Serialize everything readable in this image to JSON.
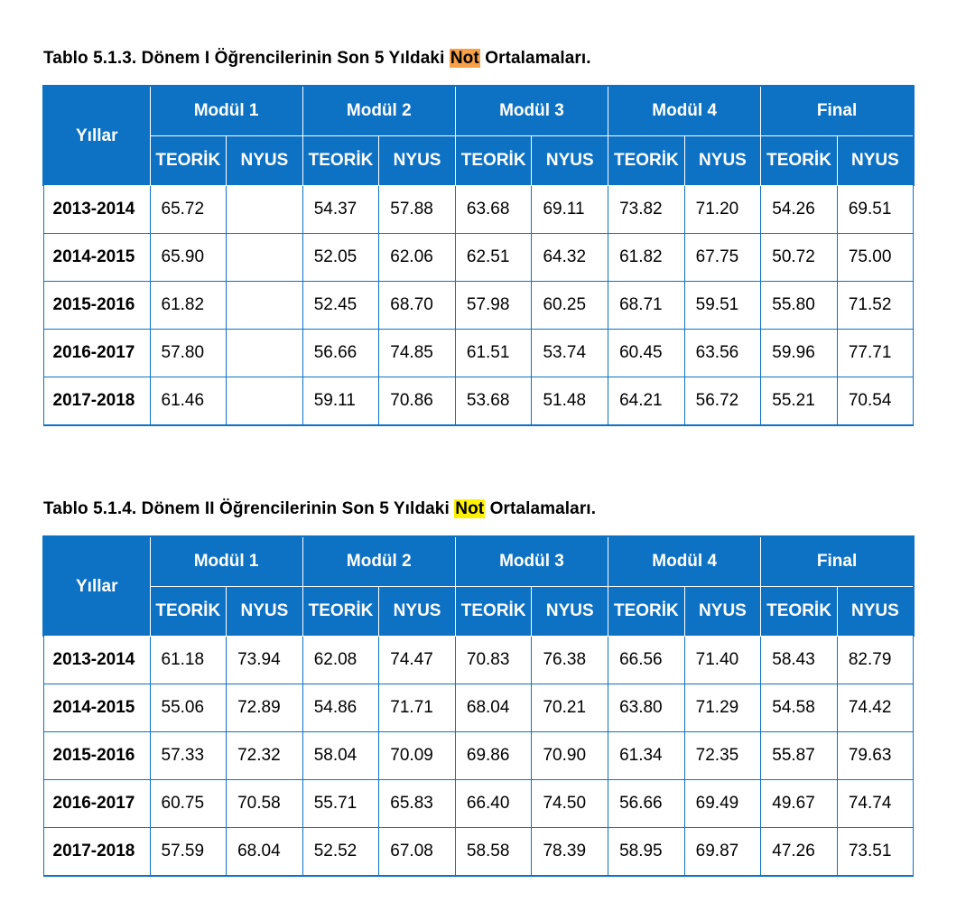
{
  "table1": {
    "caption": {
      "before": "Tablo 5.1.3. Dönem I Öğrencilerinin Son 5 Yıldaki ",
      "highlight": "Not",
      "after": " Ortalamaları."
    },
    "year_header": "Yıllar",
    "modules": [
      "Modül 1",
      "Modül 2",
      "Modül 3",
      "Modül 4",
      "Final"
    ],
    "subheaders": [
      "TEORİK",
      "NYUS"
    ],
    "rows": [
      {
        "year": "2013-2014",
        "values": [
          "65.72",
          "",
          "54.37",
          "57.88",
          "63.68",
          "69.11",
          "73.82",
          "71.20",
          "54.26",
          "69.51"
        ]
      },
      {
        "year": "2014-2015",
        "values": [
          "65.90",
          "",
          "52.05",
          "62.06",
          "62.51",
          "64.32",
          "61.82",
          "67.75",
          "50.72",
          "75.00"
        ]
      },
      {
        "year": "2015-2016",
        "values": [
          "61.82",
          "",
          "52.45",
          "68.70",
          "57.98",
          "60.25",
          "68.71",
          "59.51",
          "55.80",
          "71.52"
        ]
      },
      {
        "year": "2016-2017",
        "values": [
          "57.80",
          "",
          "56.66",
          "74.85",
          "61.51",
          "53.74",
          "60.45",
          "63.56",
          "59.96",
          "77.71"
        ]
      },
      {
        "year": "2017-2018",
        "values": [
          "61.46",
          "",
          "59.11",
          "70.86",
          "53.68",
          "51.48",
          "64.21",
          "56.72",
          "55.21",
          "70.54"
        ]
      }
    ]
  },
  "table2": {
    "caption": {
      "before": "Tablo 5.1.4. Dönem II Öğrencilerinin Son 5 Yıldaki ",
      "highlight": "Not",
      "after": " Ortalamaları."
    },
    "year_header": "Yıllar",
    "modules": [
      "Modül 1",
      "Modül 2",
      "Modül 3",
      "Modül 4",
      "Final"
    ],
    "subheaders": [
      "TEORİK",
      "NYUS"
    ],
    "rows": [
      {
        "year": "2013-2014",
        "values": [
          "61.18",
          "73.94",
          "62.08",
          "74.47",
          "70.83",
          "76.38",
          "66.56",
          "71.40",
          "58.43",
          "82.79"
        ]
      },
      {
        "year": "2014-2015",
        "values": [
          "55.06",
          "72.89",
          "54.86",
          "71.71",
          "68.04",
          "70.21",
          "63.80",
          "71.29",
          "54.58",
          "74.42"
        ]
      },
      {
        "year": "2015-2016",
        "values": [
          "57.33",
          "72.32",
          "58.04",
          "70.09",
          "69.86",
          "70.90",
          "61.34",
          "72.35",
          "55.87",
          "79.63"
        ]
      },
      {
        "year": "2016-2017",
        "values": [
          "60.75",
          "70.58",
          "55.71",
          "65.83",
          "66.40",
          "74.50",
          "56.66",
          "69.49",
          "49.67",
          "74.74"
        ]
      },
      {
        "year": "2017-2018",
        "values": [
          "57.59",
          "68.04",
          "52.52",
          "67.08",
          "58.58",
          "78.39",
          "58.95",
          "69.87",
          "47.26",
          "73.51"
        ]
      }
    ]
  },
  "colors": {
    "header_blue": "#0e72c4",
    "highlight_orange": "#f7a046",
    "highlight_yellow": "#fff200"
  }
}
